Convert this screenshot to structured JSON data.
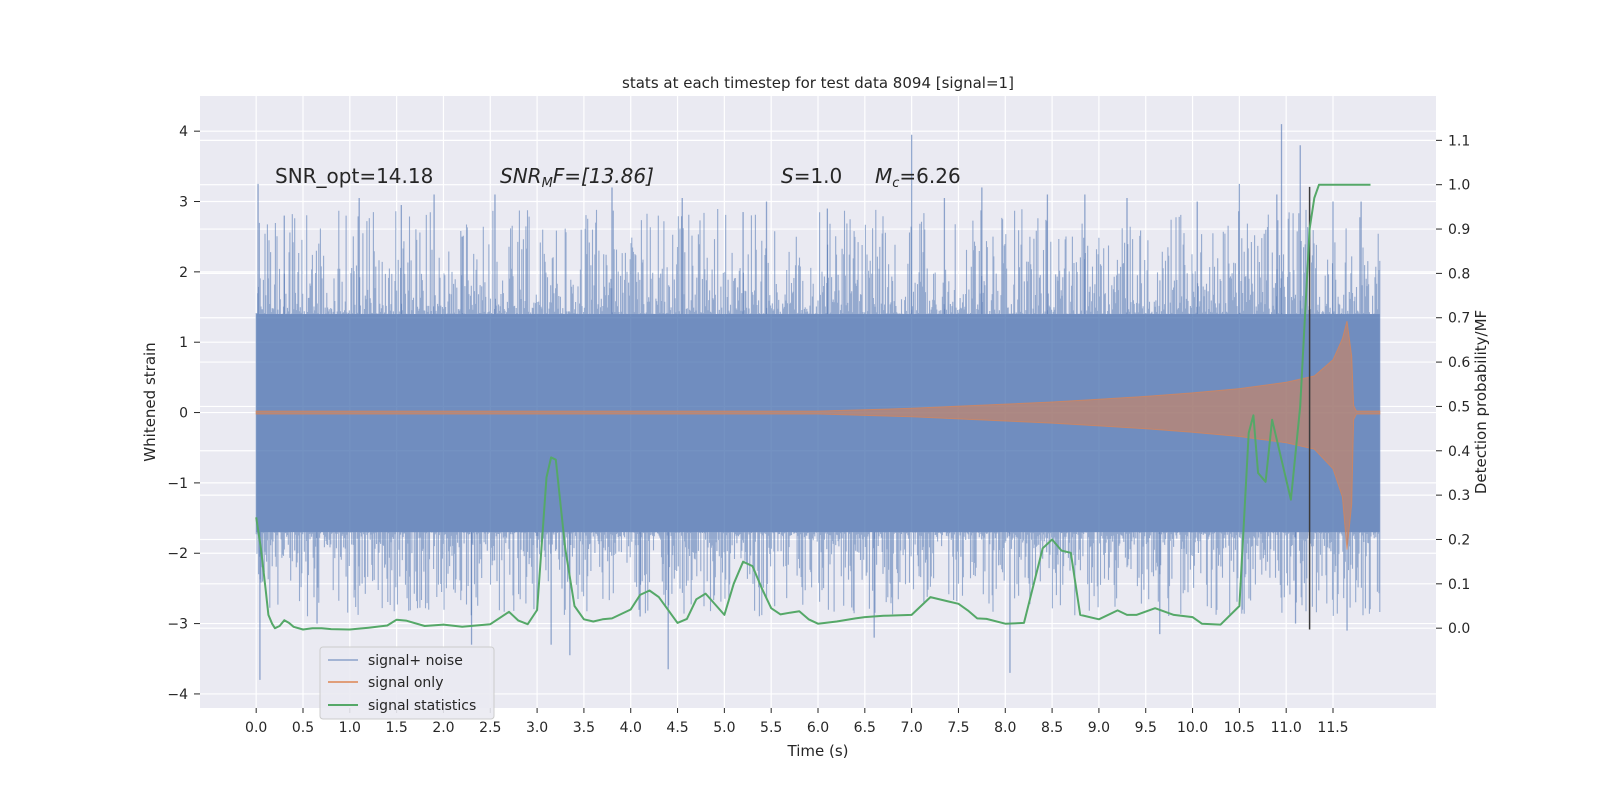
{
  "chart_data": {
    "type": "line",
    "title": "stats at each timestep for test data 8094 [signal=1]",
    "xlabel": "Time (s)",
    "ylabel_left": "Whitened strain",
    "ylabel_right": "Detection probability/MF",
    "xlim": [
      -0.6,
      12.6
    ],
    "ylim_left": [
      -4.2,
      4.5
    ],
    "ylim_right": [
      -0.18,
      1.2
    ],
    "xticks": [
      0.0,
      0.5,
      1.0,
      1.5,
      2.0,
      2.5,
      3.0,
      3.5,
      4.0,
      4.5,
      5.0,
      5.5,
      6.0,
      6.5,
      7.0,
      7.5,
      8.0,
      8.5,
      9.0,
      9.5,
      10.0,
      10.5,
      11.0,
      11.5
    ],
    "xtick_labels": [
      "0.0",
      "0.5",
      "1.0",
      "1.5",
      "2.0",
      "2.5",
      "3.0",
      "3.5",
      "4.0",
      "4.5",
      "5.0",
      "5.5",
      "6.0",
      "6.5",
      "7.0",
      "7.5",
      "8.0",
      "8.5",
      "9.0",
      "9.5",
      "10.0",
      "10.5",
      "11.0",
      "11.5"
    ],
    "yticks_left": [
      -4,
      -3,
      -2,
      -1,
      0,
      1,
      2,
      3,
      4
    ],
    "ytick_labels_left": [
      "−4",
      "−3",
      "−2",
      "−1",
      "0",
      "1",
      "2",
      "3",
      "4"
    ],
    "yticks_right": [
      0.0,
      0.1,
      0.2,
      0.3,
      0.4,
      0.5,
      0.6,
      0.7,
      0.8,
      0.9,
      1.0,
      1.1
    ],
    "ytick_labels_right": [
      "0.0",
      "0.1",
      "0.2",
      "0.3",
      "0.4",
      "0.5",
      "0.6",
      "0.7",
      "0.8",
      "0.9",
      "1.0",
      "1.1"
    ],
    "grid": true,
    "legend_position": "lower-left",
    "annotations": {
      "snr_opt": "SNR_opt=14.18",
      "snr_mf_base": "SNR",
      "snr_mf_sub": "M",
      "snr_mf_rest": "F=[13.86]",
      "s_label": "S",
      "s_value": "=1.0",
      "mc_base": "M",
      "mc_sub": "c",
      "mc_value": "=6.26"
    },
    "marker_line_x": 11.25,
    "series": [
      {
        "name": "signal+ noise",
        "color": "#4c72b0",
        "axis": "left",
        "x_range": [
          0.0,
          12.0
        ],
        "envelope_low": -1.7,
        "envelope_high": 1.4,
        "peaks": [
          {
            "x": 0.02,
            "y": 3.25
          },
          {
            "x": 0.04,
            "y": -3.8
          },
          {
            "x": 0.3,
            "y": 2.8
          },
          {
            "x": 0.65,
            "y": -3.0
          },
          {
            "x": 1.1,
            "y": 3.05
          },
          {
            "x": 1.55,
            "y": 2.95
          },
          {
            "x": 1.9,
            "y": 3.1
          },
          {
            "x": 2.2,
            "y": 2.5
          },
          {
            "x": 2.3,
            "y": -3.3
          },
          {
            "x": 2.55,
            "y": 3.1
          },
          {
            "x": 3.0,
            "y": -2.8
          },
          {
            "x": 3.15,
            "y": -3.3
          },
          {
            "x": 3.35,
            "y": -3.45
          },
          {
            "x": 3.8,
            "y": 3.2
          },
          {
            "x": 4.1,
            "y": -2.9
          },
          {
            "x": 4.4,
            "y": -3.65
          },
          {
            "x": 4.55,
            "y": 3.05
          },
          {
            "x": 5.2,
            "y": 2.85
          },
          {
            "x": 5.45,
            "y": 3.0
          },
          {
            "x": 6.1,
            "y": 2.9
          },
          {
            "x": 6.6,
            "y": -3.2
          },
          {
            "x": 7.0,
            "y": 3.95
          },
          {
            "x": 7.35,
            "y": 3.05
          },
          {
            "x": 7.75,
            "y": 3.2
          },
          {
            "x": 8.05,
            "y": -3.7
          },
          {
            "x": 8.45,
            "y": 3.1
          },
          {
            "x": 8.85,
            "y": 3.1
          },
          {
            "x": 9.3,
            "y": 3.05
          },
          {
            "x": 9.65,
            "y": -3.15
          },
          {
            "x": 10.05,
            "y": 3.0
          },
          {
            "x": 10.5,
            "y": 3.25
          },
          {
            "x": 10.9,
            "y": 3.1
          },
          {
            "x": 10.95,
            "y": 4.1
          },
          {
            "x": 11.1,
            "y": -3.0
          },
          {
            "x": 11.15,
            "y": 3.8
          },
          {
            "x": 11.5,
            "y": 3.0
          },
          {
            "x": 11.65,
            "y": -3.1
          },
          {
            "x": 11.8,
            "y": 3.0
          }
        ]
      },
      {
        "name": "signal only",
        "color": "#dd8452",
        "axis": "left",
        "x": [
          0.0,
          6.0,
          7.0,
          8.0,
          8.5,
          9.0,
          9.5,
          10.0,
          10.5,
          11.0,
          11.3,
          11.5,
          11.6,
          11.65,
          11.7,
          11.72,
          11.75,
          12.0
        ],
        "upper": [
          0.02,
          0.02,
          0.06,
          0.12,
          0.15,
          0.19,
          0.23,
          0.28,
          0.34,
          0.43,
          0.52,
          0.75,
          1.05,
          1.3,
          0.8,
          0.1,
          0.02,
          0.02
        ],
        "lower": [
          -0.02,
          -0.02,
          -0.06,
          -0.12,
          -0.15,
          -0.19,
          -0.23,
          -0.28,
          -0.34,
          -0.43,
          -0.52,
          -0.8,
          -1.2,
          -1.95,
          -1.3,
          -0.1,
          -0.02,
          -0.02
        ]
      },
      {
        "name": "signal statistics",
        "color": "#55a868",
        "axis": "right",
        "x": [
          0.0,
          0.05,
          0.1,
          0.13,
          0.17,
          0.2,
          0.25,
          0.3,
          0.35,
          0.4,
          0.5,
          0.6,
          0.7,
          0.8,
          1.0,
          1.2,
          1.4,
          1.5,
          1.6,
          1.8,
          2.0,
          2.2,
          2.5,
          2.7,
          2.8,
          2.9,
          3.0,
          3.1,
          3.15,
          3.2,
          3.3,
          3.4,
          3.5,
          3.6,
          3.7,
          3.8,
          4.0,
          4.1,
          4.2,
          4.3,
          4.5,
          4.6,
          4.7,
          4.8,
          5.0,
          5.1,
          5.2,
          5.3,
          5.4,
          5.5,
          5.6,
          5.7,
          5.8,
          5.9,
          6.0,
          6.2,
          6.4,
          6.5,
          6.7,
          7.0,
          7.2,
          7.4,
          7.5,
          7.6,
          7.7,
          7.8,
          8.0,
          8.2,
          8.4,
          8.5,
          8.6,
          8.7,
          8.8,
          9.0,
          9.2,
          9.3,
          9.4,
          9.6,
          9.8,
          10.0,
          10.1,
          10.3,
          10.5,
          10.6,
          10.65,
          10.7,
          10.78,
          10.85,
          10.95,
          11.05,
          11.15,
          11.25,
          11.3,
          11.35,
          11.45,
          11.55,
          11.7,
          11.9
        ],
        "y": [
          0.25,
          0.18,
          0.09,
          0.03,
          0.01,
          0.0,
          0.005,
          0.018,
          0.012,
          0.003,
          -0.003,
          0.0,
          0.0,
          -0.002,
          -0.003,
          0.001,
          0.006,
          0.019,
          0.017,
          0.005,
          0.008,
          0.003,
          0.009,
          0.037,
          0.017,
          0.009,
          0.041,
          0.34,
          0.385,
          0.38,
          0.18,
          0.05,
          0.02,
          0.015,
          0.02,
          0.022,
          0.042,
          0.075,
          0.085,
          0.07,
          0.012,
          0.021,
          0.065,
          0.078,
          0.03,
          0.1,
          0.15,
          0.14,
          0.09,
          0.045,
          0.031,
          0.035,
          0.038,
          0.02,
          0.01,
          0.015,
          0.022,
          0.025,
          0.028,
          0.03,
          0.07,
          0.06,
          0.055,
          0.04,
          0.022,
          0.021,
          0.01,
          0.012,
          0.18,
          0.2,
          0.175,
          0.17,
          0.03,
          0.02,
          0.04,
          0.03,
          0.03,
          0.045,
          0.03,
          0.025,
          0.01,
          0.008,
          0.05,
          0.44,
          0.48,
          0.35,
          0.33,
          0.47,
          0.38,
          0.29,
          0.5,
          0.9,
          0.97,
          1.0,
          1.0,
          1.0,
          1.0,
          1.0
        ]
      }
    ]
  }
}
